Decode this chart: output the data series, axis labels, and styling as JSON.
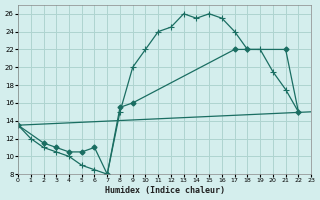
{
  "title": "",
  "xlabel": "Humidex (Indice chaleur)",
  "ylabel": "",
  "background_color": "#d4eeed",
  "grid_color": "#aed4d0",
  "line_color": "#1a6e62",
  "ylim": [
    8,
    27
  ],
  "xlim": [
    0,
    23
  ],
  "yticks": [
    8,
    10,
    12,
    14,
    16,
    18,
    20,
    22,
    24,
    26
  ],
  "xticks": [
    0,
    1,
    2,
    3,
    4,
    5,
    6,
    7,
    8,
    9,
    10,
    11,
    12,
    13,
    14,
    15,
    16,
    17,
    18,
    19,
    20,
    21,
    22,
    23
  ],
  "series": [
    {
      "x": [
        0,
        1,
        2,
        3,
        4,
        5,
        6,
        7,
        8,
        9,
        10,
        11,
        12,
        13,
        14,
        15,
        16,
        17,
        18,
        19,
        20,
        21,
        22
      ],
      "y": [
        13.5,
        12.0,
        11.0,
        10.5,
        10.0,
        9.0,
        8.5,
        8.0,
        15.0,
        20.0,
        22.0,
        24.0,
        24.5,
        26.0,
        25.5,
        26.0,
        25.5,
        24.0,
        22.0,
        22.0,
        19.5,
        17.5,
        15.0
      ]
    },
    {
      "x": [
        0,
        2,
        3,
        4,
        5,
        6,
        7,
        8,
        9,
        17,
        18,
        21,
        22
      ],
      "y": [
        13.5,
        11.5,
        11.0,
        10.5,
        10.5,
        11.0,
        8.0,
        15.5,
        16.0,
        22.0,
        22.0,
        22.0,
        15.0
      ]
    },
    {
      "x": [
        0,
        23
      ],
      "y": [
        13.5,
        15.0
      ]
    }
  ]
}
